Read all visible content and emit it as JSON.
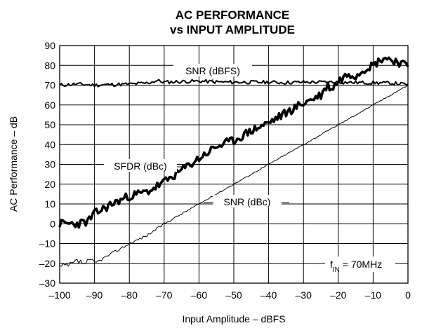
{
  "chart_data": {
    "type": "line",
    "title": "AC PERFORMANCE",
    "subtitle": "vs INPUT AMPLITUDE",
    "xlabel": "Input Amplitude – dBFS",
    "ylabel": "AC Performance – dB",
    "xlim": [
      -100,
      0
    ],
    "ylim": [
      -30,
      90
    ],
    "x_ticks": [
      "–100",
      "–90",
      "–80",
      "–70",
      "–60",
      "–50",
      "–40",
      "–30",
      "–20",
      "–10",
      "0"
    ],
    "y_ticks": [
      "–30",
      "–20",
      "–10",
      "0",
      "10",
      "20",
      "30",
      "40",
      "50",
      "60",
      "70",
      "80",
      "90"
    ],
    "grid": true,
    "legend": "none",
    "annotation": {
      "main": "f",
      "sub": "IN",
      "rest": " = 70MHz"
    },
    "series": [
      {
        "name": "SNR (dBFS)",
        "x": [
          -100,
          -95,
          -90,
          -85,
          -80,
          -75,
          -72,
          -70,
          -65,
          -60,
          -55,
          -50,
          -45,
          -40,
          -35,
          -30,
          -25,
          -23,
          -20,
          -15,
          -10,
          -5,
          0
        ],
        "y": [
          70,
          70.5,
          70,
          70.3,
          70.5,
          71,
          72.3,
          71.5,
          71.8,
          72,
          71.6,
          71.5,
          71.5,
          71.5,
          71.3,
          71.5,
          71.5,
          71.5,
          71.5,
          71.3,
          71.2,
          71,
          70.3
        ]
      },
      {
        "name": "SFDR (dBc)",
        "x": [
          -100,
          -95,
          -92,
          -90,
          -88,
          -85,
          -80,
          -75,
          -70,
          -65,
          -60,
          -55,
          -50,
          -45,
          -40,
          -35,
          -30,
          -25,
          -23,
          -22,
          -20,
          -17,
          -15,
          -12,
          -10,
          -7,
          -5,
          -3,
          -1,
          0
        ],
        "y": [
          0,
          0,
          1,
          5,
          7,
          10,
          14,
          16,
          21,
          27,
          33,
          39,
          42,
          47,
          51,
          56,
          61,
          65,
          70,
          68,
          72,
          76,
          75,
          79,
          80,
          84,
          83,
          82,
          80,
          80
        ]
      },
      {
        "name": "SNR (dBc)",
        "x": [
          -100,
          -97,
          -95,
          -93,
          -91,
          -90,
          -85,
          -80,
          -75,
          -70,
          -65,
          -60,
          -50,
          -40,
          -30,
          -20,
          -10,
          0
        ],
        "y": [
          -22,
          -21,
          -19,
          -20,
          -19,
          -20,
          -15,
          -10,
          -6,
          0,
          5,
          10,
          20,
          30,
          40,
          50,
          60,
          70
        ]
      }
    ]
  }
}
